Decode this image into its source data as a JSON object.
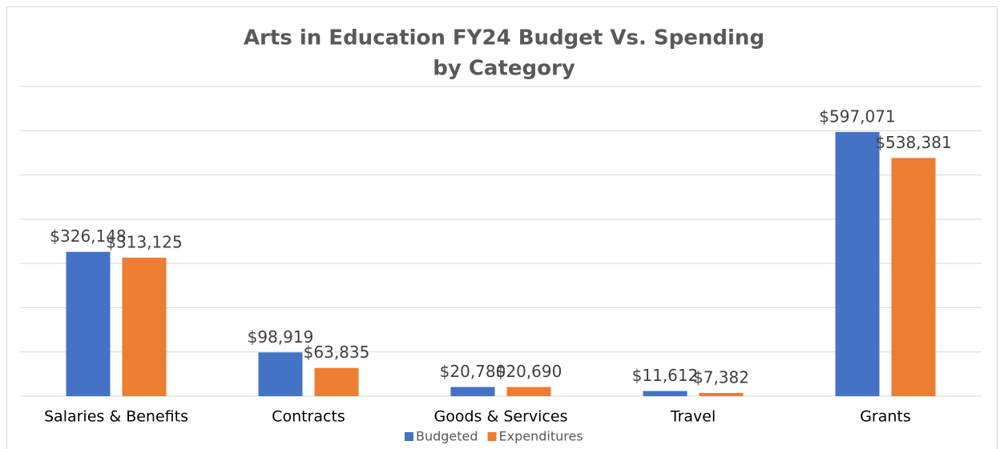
{
  "chart_data": {
    "type": "bar",
    "title": [
      "Arts in Education FY24 Budget Vs. Spending",
      "by Category"
    ],
    "categories": [
      "Salaries & Benefits",
      "Contracts",
      "Goods & Services",
      "Travel",
      "Grants"
    ],
    "series": [
      {
        "name": "Budgeted",
        "color": "#4472c4",
        "values": [
          326148,
          98919,
          20780,
          11612,
          597071
        ],
        "value_labels": [
          "$326,148",
          "$98,919",
          "$20,780",
          "$11,612",
          "$597,071"
        ]
      },
      {
        "name": "Expenditures",
        "color": "#ed7d31",
        "values": [
          313125,
          63835,
          20690,
          7382,
          538381
        ],
        "value_labels": [
          "$313,125",
          "$63,835",
          "$20,690",
          "$7,382",
          "$538,381"
        ]
      }
    ],
    "ylim": [
      0,
      700000
    ],
    "yticks": [
      0,
      100000,
      200000,
      300000,
      400000,
      500000,
      600000,
      700000
    ],
    "grid": true,
    "legend": "bottom"
  }
}
